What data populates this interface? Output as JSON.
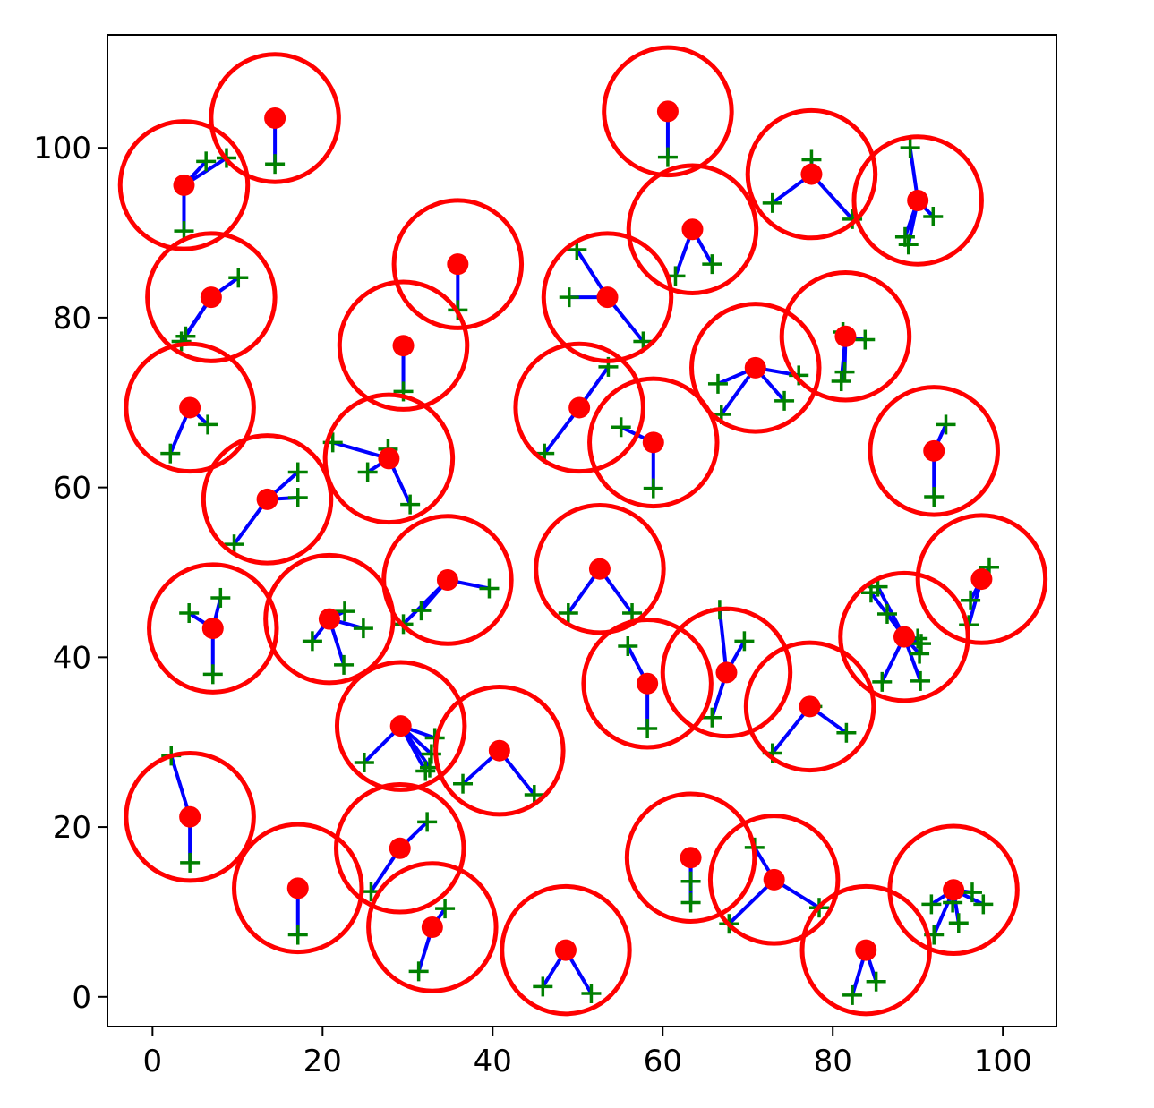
{
  "chart_data": {
    "type": "scatter",
    "title": "",
    "xlabel": "",
    "ylabel": "",
    "xlim": [
      -5.3,
      106.3
    ],
    "ylim": [
      -3.5,
      113.3
    ],
    "xticks": [
      0,
      20,
      40,
      60,
      80,
      100
    ],
    "yticks": [
      0,
      20,
      40,
      60,
      80,
      100
    ],
    "xtick_labels": [
      "0",
      "20",
      "40",
      "60",
      "80",
      "100"
    ],
    "ytick_labels": [
      "0",
      "20",
      "40",
      "60",
      "80",
      "100"
    ],
    "grid": false,
    "legend": null,
    "coverage_radius": 7.5,
    "colors": {
      "center": "#ff0000",
      "circle": "#ff0000",
      "link": "#0000ff",
      "user": "#008000",
      "axes": "#000000"
    },
    "centers": [
      {
        "x": 14.4,
        "y": 103.5,
        "users": [
          [
            14.4,
            98.1
          ]
        ]
      },
      {
        "x": 3.7,
        "y": 95.6,
        "users": [
          [
            3.7,
            90.2
          ],
          [
            6.3,
            98.4
          ],
          [
            8.7,
            98.8
          ]
        ]
      },
      {
        "x": 6.9,
        "y": 82.4,
        "users": [
          [
            3.9,
            77.8
          ],
          [
            3.4,
            77.2
          ],
          [
            10.1,
            84.7
          ]
        ]
      },
      {
        "x": 4.4,
        "y": 69.4,
        "users": [
          [
            2.1,
            64.0
          ],
          [
            6.5,
            67.4
          ]
        ]
      },
      {
        "x": 13.5,
        "y": 58.6,
        "users": [
          [
            9.6,
            53.3
          ],
          [
            17.1,
            58.8
          ],
          [
            17.1,
            61.8
          ]
        ]
      },
      {
        "x": 7.1,
        "y": 43.4,
        "users": [
          [
            7.1,
            38.0
          ],
          [
            4.3,
            45.2
          ],
          [
            8.0,
            47.0
          ]
        ]
      },
      {
        "x": 20.8,
        "y": 44.5,
        "users": [
          [
            18.8,
            41.9
          ],
          [
            22.5,
            39.1
          ],
          [
            24.8,
            43.4
          ],
          [
            22.6,
            45.4
          ]
        ]
      },
      {
        "x": 4.4,
        "y": 21.2,
        "users": [
          [
            4.4,
            15.8
          ],
          [
            2.2,
            28.4
          ]
        ]
      },
      {
        "x": 17.1,
        "y": 12.8,
        "users": [
          [
            17.1,
            7.3
          ]
        ]
      },
      {
        "x": 29.5,
        "y": 76.7,
        "users": [
          [
            29.5,
            71.3
          ]
        ]
      },
      {
        "x": 35.9,
        "y": 86.3,
        "users": [
          [
            35.9,
            80.9
          ]
        ]
      },
      {
        "x": 27.8,
        "y": 63.4,
        "users": [
          [
            21.2,
            65.3
          ],
          [
            25.3,
            61.8
          ],
          [
            27.7,
            64.5
          ],
          [
            30.3,
            58.0
          ]
        ]
      },
      {
        "x": 34.7,
        "y": 49.1,
        "users": [
          [
            29.5,
            43.9
          ],
          [
            31.6,
            45.5
          ],
          [
            39.6,
            48.1
          ]
        ]
      },
      {
        "x": 29.2,
        "y": 31.9,
        "users": [
          [
            24.9,
            27.6
          ],
          [
            32.6,
            27.0
          ],
          [
            33.2,
            30.5
          ],
          [
            32.8,
            28.6
          ],
          [
            32.1,
            26.6
          ]
        ]
      },
      {
        "x": 40.8,
        "y": 29.0,
        "users": [
          [
            36.5,
            25.1
          ],
          [
            44.9,
            23.8
          ]
        ]
      },
      {
        "x": 29.1,
        "y": 17.5,
        "users": [
          [
            25.7,
            12.4
          ],
          [
            32.3,
            20.6
          ]
        ]
      },
      {
        "x": 32.9,
        "y": 8.2,
        "users": [
          [
            31.3,
            3.0
          ],
          [
            34.4,
            10.4
          ]
        ]
      },
      {
        "x": 48.6,
        "y": 5.5,
        "users": [
          [
            45.9,
            1.2
          ],
          [
            51.6,
            0.4
          ]
        ]
      },
      {
        "x": 60.6,
        "y": 104.3,
        "users": [
          [
            60.6,
            98.9
          ]
        ]
      },
      {
        "x": 63.5,
        "y": 90.4,
        "users": [
          [
            61.5,
            84.9
          ],
          [
            65.8,
            86.3
          ]
        ]
      },
      {
        "x": 53.5,
        "y": 82.4,
        "users": [
          [
            49.0,
            82.4
          ],
          [
            49.9,
            88.0
          ],
          [
            57.7,
            77.2
          ]
        ]
      },
      {
        "x": 50.2,
        "y": 69.4,
        "users": [
          [
            46.1,
            64.0
          ],
          [
            53.6,
            74.2
          ]
        ]
      },
      {
        "x": 58.9,
        "y": 65.3,
        "users": [
          [
            55.1,
            67.1
          ],
          [
            58.9,
            59.9
          ]
        ]
      },
      {
        "x": 52.6,
        "y": 50.4,
        "users": [
          [
            48.9,
            45.2
          ],
          [
            56.4,
            45.2
          ]
        ]
      },
      {
        "x": 58.2,
        "y": 36.9,
        "users": [
          [
            55.9,
            41.3
          ],
          [
            58.2,
            31.6
          ]
        ]
      },
      {
        "x": 67.5,
        "y": 38.2,
        "users": [
          [
            66.7,
            45.6
          ],
          [
            65.8,
            32.9
          ],
          [
            69.6,
            41.9
          ]
        ]
      },
      {
        "x": 77.5,
        "y": 96.9,
        "users": [
          [
            72.9,
            93.5
          ],
          [
            77.5,
            98.6
          ],
          [
            82.3,
            91.6
          ]
        ]
      },
      {
        "x": 90.0,
        "y": 93.8,
        "users": [
          [
            89.1,
            100.0
          ],
          [
            91.8,
            91.9
          ],
          [
            88.5,
            89.5
          ],
          [
            88.9,
            88.6
          ]
        ]
      },
      {
        "x": 70.9,
        "y": 74.1,
        "users": [
          [
            66.5,
            72.2
          ],
          [
            66.9,
            68.6
          ],
          [
            76.0,
            73.2
          ],
          [
            74.3,
            70.2
          ]
        ]
      },
      {
        "x": 81.5,
        "y": 77.8,
        "users": [
          [
            81.2,
            78.3
          ],
          [
            83.8,
            77.4
          ],
          [
            81.4,
            73.6
          ],
          [
            81.0,
            72.5
          ]
        ]
      },
      {
        "x": 91.9,
        "y": 64.3,
        "users": [
          [
            91.9,
            58.9
          ],
          [
            93.3,
            67.4
          ]
        ]
      },
      {
        "x": 77.3,
        "y": 34.2,
        "users": [
          [
            72.9,
            28.7
          ],
          [
            81.6,
            31.1
          ],
          [
            77.6,
            34.2
          ]
        ]
      },
      {
        "x": 88.4,
        "y": 42.4,
        "users": [
          [
            84.5,
            47.6
          ],
          [
            85.3,
            48.3
          ],
          [
            86.4,
            45.1
          ],
          [
            90.0,
            42.2
          ],
          [
            90.4,
            41.6
          ],
          [
            90.2,
            40.4
          ],
          [
            90.3,
            37.2
          ],
          [
            85.8,
            37.1
          ]
        ]
      },
      {
        "x": 97.5,
        "y": 49.2,
        "users": [
          [
            98.4,
            50.6
          ],
          [
            96.2,
            46.7
          ],
          [
            96.0,
            43.8
          ]
        ]
      },
      {
        "x": 63.3,
        "y": 16.4,
        "users": [
          [
            63.3,
            13.6
          ],
          [
            63.3,
            11.1
          ]
        ]
      },
      {
        "x": 73.1,
        "y": 13.8,
        "users": [
          [
            70.8,
            17.6
          ],
          [
            67.8,
            8.6
          ],
          [
            78.4,
            10.5
          ]
        ]
      },
      {
        "x": 83.9,
        "y": 5.5,
        "users": [
          [
            82.3,
            0.2
          ],
          [
            85.1,
            1.8
          ]
        ]
      },
      {
        "x": 94.2,
        "y": 12.6,
        "users": [
          [
            91.6,
            10.9
          ],
          [
            91.9,
            7.3
          ],
          [
            94.1,
            11.1
          ],
          [
            94.8,
            8.7
          ],
          [
            96.4,
            12.3
          ],
          [
            97.7,
            10.9
          ]
        ]
      }
    ]
  }
}
